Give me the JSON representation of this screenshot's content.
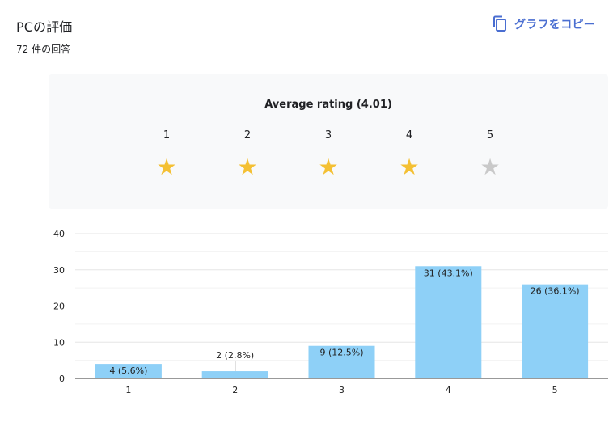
{
  "header": {
    "title": "PCの評価",
    "responses": "72 件の回答",
    "copy_label": "グラフをコピー"
  },
  "rating": {
    "label": "Average rating (4.01)",
    "stars": [
      {
        "num": "1",
        "filled": true
      },
      {
        "num": "2",
        "filled": true
      },
      {
        "num": "3",
        "filled": true
      },
      {
        "num": "4",
        "filled": true
      },
      {
        "num": "5",
        "filled": false
      }
    ]
  },
  "colors": {
    "bar": "#8ed0f7",
    "star_on": "#f4c033",
    "star_off": "#c9c9c9",
    "accent": "#4a6ed1"
  },
  "chart_data": {
    "type": "bar",
    "categories": [
      "1",
      "2",
      "3",
      "4",
      "5"
    ],
    "values": [
      4,
      2,
      9,
      31,
      26
    ],
    "labels": [
      "4 (5.6%)",
      "2 (2.8%)",
      "9 (12.5%)",
      "31 (43.1%)",
      "26 (36.1%)"
    ],
    "ylim": [
      0,
      40
    ],
    "yticks": [
      0,
      10,
      20,
      30,
      40
    ],
    "grid": true,
    "legend": "none"
  }
}
